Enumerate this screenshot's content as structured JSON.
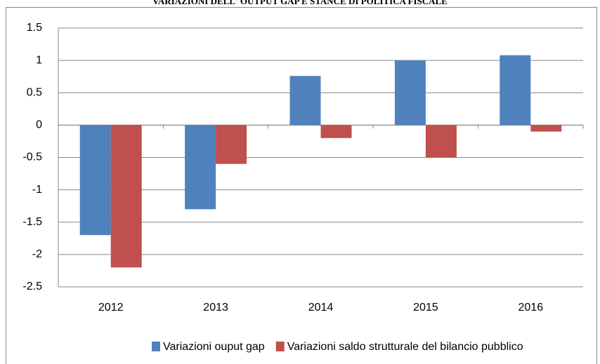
{
  "chart_data": {
    "type": "bar",
    "title": "VARIAZIONI DELL' OUTPUT GAP E STANCE DI POLITICA FISCALE",
    "categories": [
      "2012",
      "2013",
      "2014",
      "2015",
      "2016"
    ],
    "series": [
      {
        "name": "Variazioni ouput gap",
        "color": "#4f81bd",
        "values": [
          -1.7,
          -1.3,
          0.76,
          1.0,
          1.08
        ]
      },
      {
        "name": "Variazioni saldo strutturale del bilancio pubblico",
        "color": "#c0504d",
        "values": [
          -2.2,
          -0.6,
          -0.2,
          -0.5,
          -0.1
        ]
      }
    ],
    "ylim": [
      -2.5,
      1.5
    ],
    "yticks": [
      {
        "value": 1.5,
        "label": "1.5"
      },
      1,
      {
        "value": 0.5,
        "label": "0.5"
      },
      0,
      {
        "value": -0.5,
        "label": "-0.5"
      },
      -1,
      {
        "value": -1.5,
        "label": "-1.5"
      },
      -2,
      {
        "value": -2.5,
        "label": "-2.5"
      }
    ],
    "grid": true,
    "legend": "bottom"
  }
}
